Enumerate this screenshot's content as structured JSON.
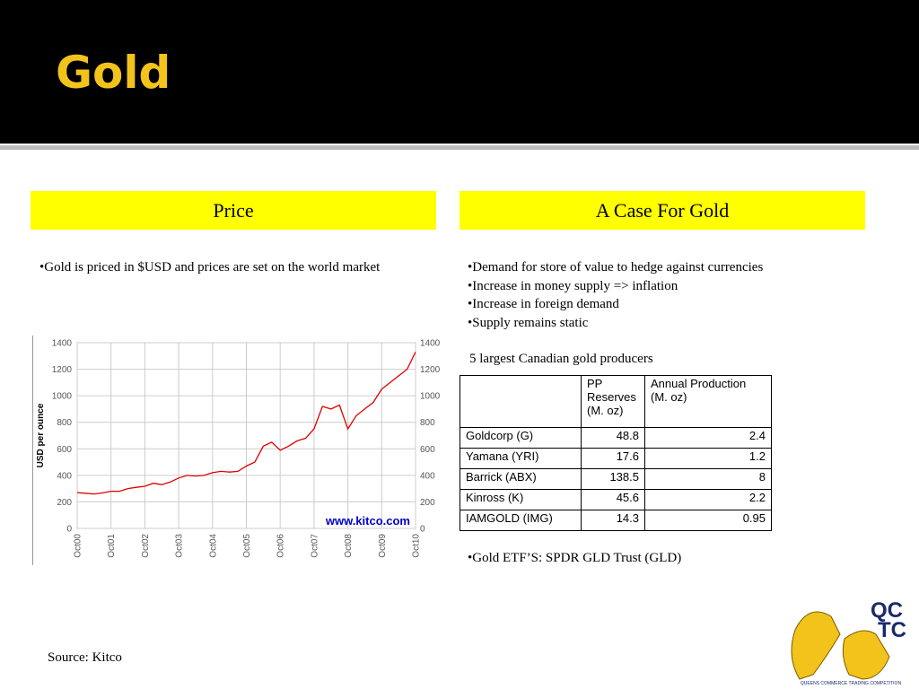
{
  "header": {
    "title": "Gold"
  },
  "left": {
    "heading": "Price",
    "bullets": [
      "•Gold is priced in $USD and prices are set on the world market"
    ],
    "source": "Source: Kitco"
  },
  "chart_data": {
    "type": "line",
    "y_label": "USD per ounce",
    "watermark": "www.kitco.com",
    "categories": [
      "Oct00",
      null,
      null,
      null,
      "Oct01",
      null,
      null,
      null,
      "Oct02",
      null,
      null,
      null,
      "Oct03",
      null,
      null,
      null,
      "Oct04",
      null,
      null,
      null,
      "Oct05",
      null,
      null,
      null,
      "Oct06",
      null,
      null,
      null,
      "Oct07",
      null,
      null,
      null,
      "Oct08",
      null,
      null,
      null,
      "Oct09",
      null,
      null,
      null,
      "Oct10"
    ],
    "values": [
      270,
      265,
      260,
      268,
      280,
      280,
      300,
      310,
      318,
      340,
      330,
      350,
      380,
      400,
      395,
      400,
      420,
      430,
      425,
      430,
      470,
      500,
      620,
      650,
      590,
      620,
      660,
      680,
      750,
      920,
      900,
      930,
      750,
      850,
      900,
      950,
      1050,
      1100,
      1150,
      1200,
      1330
    ],
    "color": "#e00000",
    "ylim": [
      0,
      1400
    ],
    "yticks": [
      0,
      200,
      400,
      600,
      800,
      1000,
      1200,
      1400
    ],
    "grid": true
  },
  "right": {
    "heading": "A Case For Gold",
    "bullets": [
      "•Demand for store of value to hedge against currencies",
      "•Increase in money supply => inflation",
      "•Increase in foreign demand",
      "•Supply remains static"
    ],
    "table_caption": "5 largest Canadian gold producers",
    "footer": "•Gold ETF’S:  SPDR GLD Trust (GLD)"
  },
  "table": {
    "header": [
      "PP Reserves (M. oz)",
      "Annual Production (M. oz)"
    ],
    "rows": [
      [
        "Goldcorp (G)",
        48.8,
        2.4
      ],
      [
        "Yamana (YRI)",
        17.6,
        1.2
      ],
      [
        "Barrick (ABX)",
        138.5,
        8
      ],
      [
        "Kinross (K)",
        45.6,
        2.2
      ],
      [
        "IAMGOLD (IMG)",
        14.3,
        0.95
      ]
    ]
  },
  "logo": {
    "line1": "QC",
    "line2": "TC",
    "caption": "QUEENS COMMERCE TRADING COMPETITION"
  }
}
